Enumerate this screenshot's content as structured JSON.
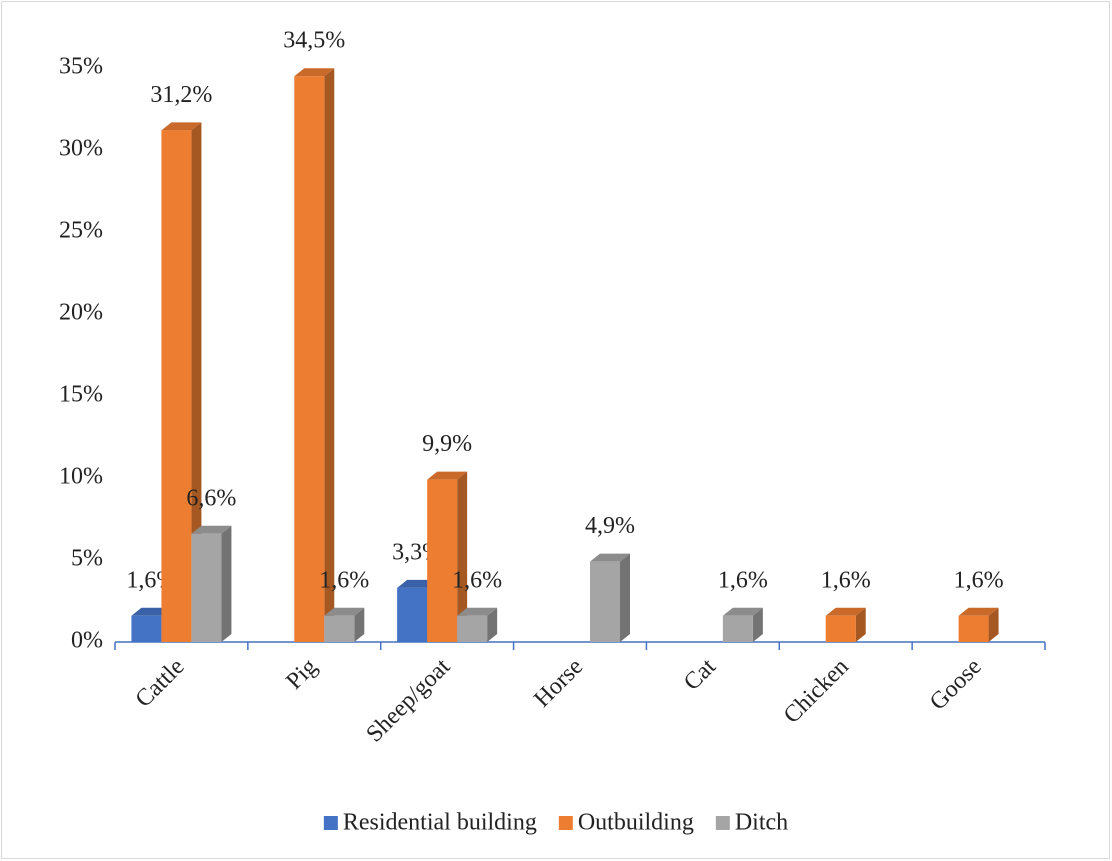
{
  "chart_data": {
    "type": "bar3d",
    "categories": [
      "Cattle",
      "Pig",
      "Sheep/goat",
      "Horse",
      "Cat",
      "Chicken",
      "Goose"
    ],
    "series": [
      {
        "name": "Residential building",
        "color": "#4472c4",
        "values": [
          1.6,
          null,
          3.3,
          null,
          null,
          null,
          null
        ],
        "value_labels": [
          "1,6%",
          null,
          "3,3%",
          null,
          null,
          null,
          null
        ]
      },
      {
        "name": "Outbuilding",
        "color": "#ed7d31",
        "values": [
          31.2,
          34.5,
          9.9,
          null,
          null,
          1.6,
          1.6
        ],
        "value_labels": [
          "31,2%",
          "34,5%",
          "9,9%",
          null,
          null,
          "1,6%",
          "1,6%"
        ]
      },
      {
        "name": "Ditch",
        "color": "#a5a5a5",
        "values": [
          6.6,
          1.6,
          1.6,
          4.9,
          1.6,
          null,
          null
        ],
        "value_labels": [
          "6,6%",
          "1,6%",
          "1,6%",
          "4,9%",
          "1,6%",
          null,
          null
        ]
      }
    ],
    "ylim": [
      0,
      35
    ],
    "yticks": [
      {
        "value": 0,
        "label": "0%"
      },
      {
        "value": 5,
        "label": "5%"
      },
      {
        "value": 10,
        "label": "10%"
      },
      {
        "value": 15,
        "label": "15%"
      },
      {
        "value": 20,
        "label": "20%"
      },
      {
        "value": 25,
        "label": "25%"
      },
      {
        "value": 30,
        "label": "30%"
      },
      {
        "value": 35,
        "label": "35%"
      }
    ],
    "grid": false,
    "legend": "bottom"
  }
}
